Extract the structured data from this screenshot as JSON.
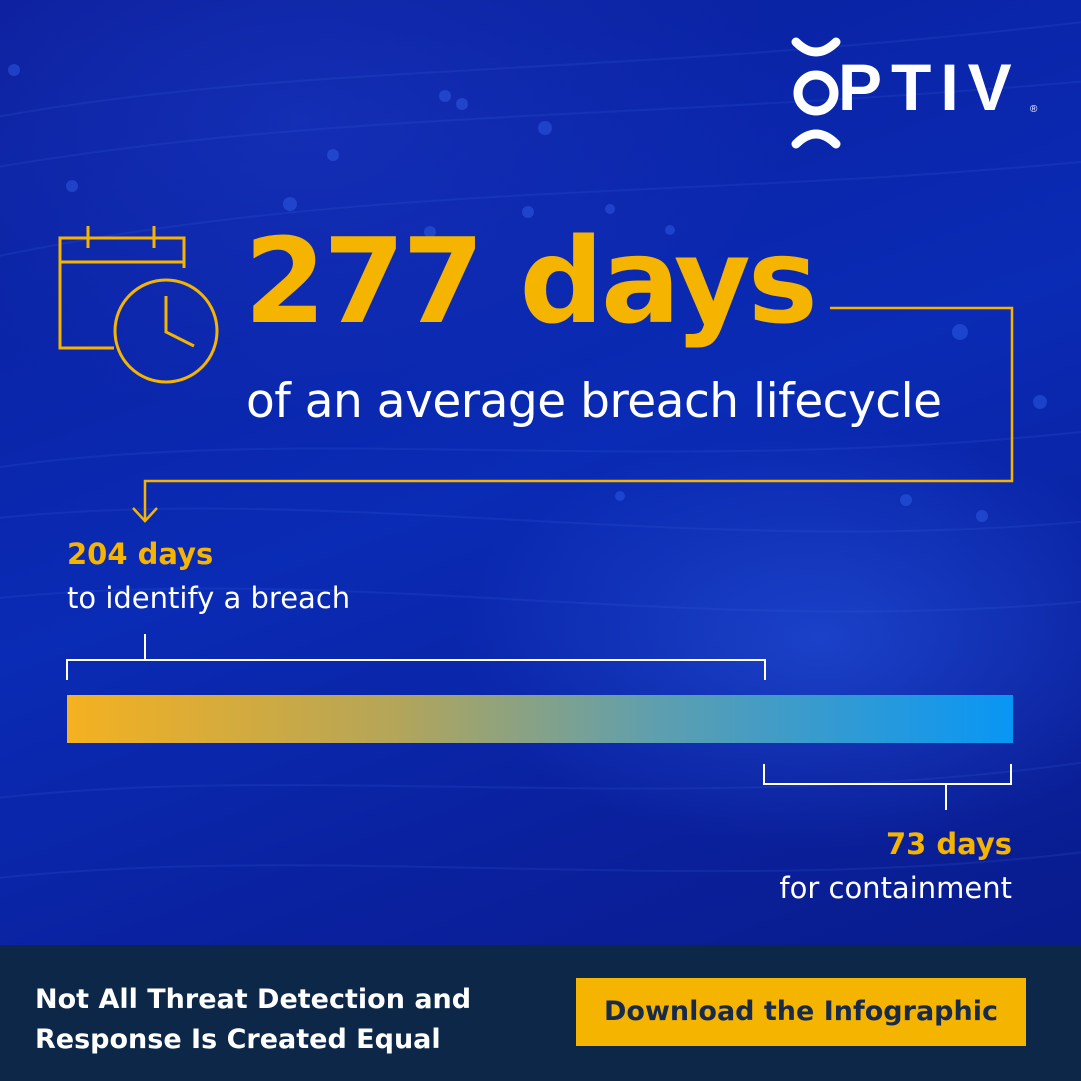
{
  "brand": {
    "logo_text": "PTIV",
    "logo_full": "OPTIV",
    "registered_mark": "®"
  },
  "headline": {
    "value": "277 days",
    "subtitle": "of an average breach lifecycle"
  },
  "segments": [
    {
      "value": "204 days",
      "label": "to identify a breach"
    },
    {
      "value": "73 days",
      "label": "for containment"
    }
  ],
  "timeline": {
    "total_days": 277,
    "identify_days": 204,
    "containment_days": 73
  },
  "footer": {
    "tagline_line1": "Not All Threat Detection and",
    "tagline_line2": "Response Is Created Equal",
    "cta_label": "Download the Infographic"
  },
  "colors": {
    "background": "#0a1f9a",
    "accent": "#f5b400",
    "bar_end": "#0896f5",
    "footer": "#0c2748",
    "text": "#ffffff"
  },
  "icons": {
    "calendar": "calendar-clock-icon",
    "arrow": "arrow-down-icon"
  }
}
